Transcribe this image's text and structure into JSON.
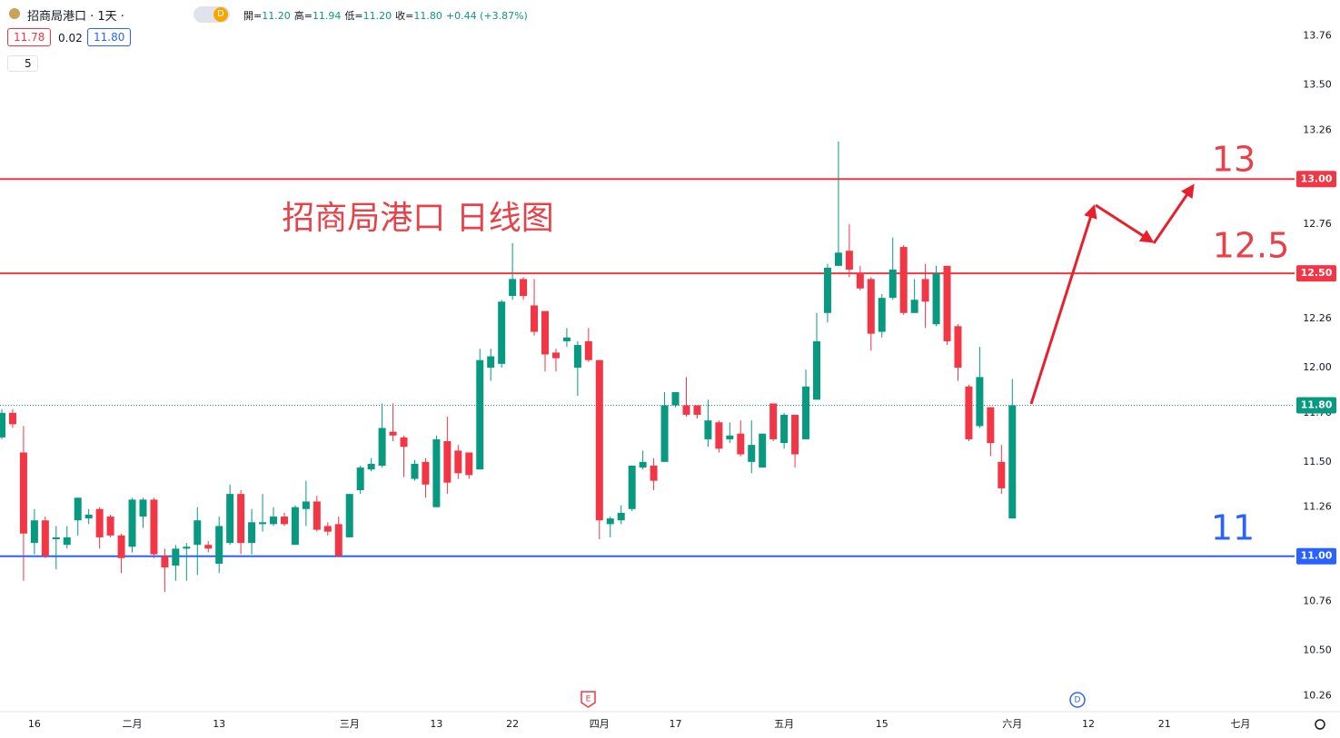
{
  "header": {
    "symbol": "招商局港口 · 1天 ·",
    "badge": "D",
    "ohlc": [
      {
        "label": "開=",
        "value": "11.20"
      },
      {
        "label": "高=",
        "value": "11.94"
      },
      {
        "label": "低=",
        "value": "11.20"
      },
      {
        "label": "收=",
        "value": "11.80"
      }
    ],
    "change": "+0.44 (+3.87%)",
    "sell": "11.78",
    "spread": "0.02",
    "buy": "11.80",
    "indicator": "5"
  },
  "chart_data": {
    "type": "candlestick",
    "title": "招商局港口 日线图",
    "categories": [
      null,
      null,
      null,
      "16",
      null,
      null,
      null,
      null,
      null,
      null,
      null,
      null,
      "二月",
      null,
      null,
      null,
      null,
      null,
      null,
      null,
      "13",
      null,
      null,
      null,
      null,
      null,
      null,
      null,
      null,
      null,
      null,
      null,
      "三月",
      null,
      null,
      null,
      null,
      null,
      null,
      null,
      "13",
      null,
      null,
      null,
      null,
      null,
      null,
      "22",
      null,
      null,
      null,
      null,
      null,
      null,
      null,
      "四月",
      null,
      null,
      null,
      null,
      null,
      null,
      "17",
      null,
      null,
      null,
      null,
      null,
      null,
      null,
      null,
      null,
      "五月",
      null,
      null,
      null,
      null,
      null,
      null,
      null,
      null,
      "15",
      null,
      null,
      null,
      null,
      null,
      null,
      null,
      null,
      null,
      null,
      null,
      "六月",
      null,
      null,
      null,
      null,
      null,
      null,
      "12",
      null,
      null,
      null,
      null,
      null,
      null,
      "21",
      null,
      null,
      null,
      null,
      null,
      null,
      "七月",
      null,
      null,
      null
    ],
    "open": [
      11.63,
      11.76,
      11.55,
      11.07,
      11.19,
      11.09,
      11.06,
      11.19,
      11.2,
      11.25,
      11.21,
      11.11,
      11.05,
      11.21,
      11.3,
      11.0,
      10.95,
      11.04,
      11.06,
      11.06,
      10.96,
      11.07,
      11.33,
      11.07,
      11.17,
      11.17,
      11.21,
      11.06,
      11.25,
      11.29,
      11.16,
      11.17,
      11.1,
      11.35,
      11.46,
      11.48,
      11.66,
      11.63,
      11.41,
      11.5,
      11.26,
      11.61,
      11.56,
      11.55,
      11.46,
      12.0,
      12.02,
      12.38,
      12.47,
      12.33,
      12.3,
      12.08,
      12.14,
      12.0,
      12.14,
      12.04,
      11.17,
      11.19,
      11.25,
      11.47,
      11.48,
      11.5,
      11.8,
      11.8,
      11.8,
      11.62,
      11.71,
      11.62,
      11.65,
      11.5,
      11.47,
      11.81,
      11.6,
      11.75,
      11.62,
      11.83,
      12.29,
      12.54,
      12.62,
      12.5,
      12.47,
      12.19,
      12.37,
      12.64,
      12.29,
      12.47,
      12.23,
      12.54,
      12.22,
      11.9,
      11.69,
      11.79,
      11.5,
      11.2,
      null,
      null,
      null,
      null,
      null,
      null,
      null,
      null,
      null,
      null,
      null,
      null,
      null,
      null,
      null,
      null,
      null,
      null,
      null,
      null,
      null,
      null,
      null,
      null
    ],
    "high": [
      11.78,
      11.78,
      11.69,
      11.25,
      11.21,
      11.16,
      11.16,
      11.31,
      11.25,
      11.26,
      11.22,
      11.12,
      11.31,
      11.31,
      11.31,
      11.04,
      11.06,
      11.07,
      11.26,
      11.08,
      11.21,
      11.38,
      11.35,
      11.25,
      11.33,
      11.26,
      11.23,
      11.27,
      11.4,
      11.32,
      11.18,
      11.21,
      11.33,
      11.48,
      11.52,
      11.81,
      11.81,
      11.64,
      11.51,
      11.52,
      11.64,
      11.74,
      11.59,
      11.55,
      12.1,
      12.1,
      12.36,
      12.66,
      12.48,
      12.47,
      12.3,
      12.1,
      12.21,
      12.14,
      12.21,
      12.04,
      11.21,
      11.27,
      11.48,
      11.56,
      11.52,
      11.87,
      11.87,
      11.95,
      11.8,
      11.83,
      11.72,
      11.71,
      11.72,
      11.72,
      11.65,
      11.81,
      11.76,
      11.75,
      11.99,
      12.29,
      12.55,
      13.2,
      12.76,
      12.54,
      12.48,
      12.39,
      12.69,
      12.65,
      12.47,
      12.55,
      12.54,
      12.54,
      12.23,
      11.91,
      12.11,
      11.79,
      11.59,
      11.94,
      null,
      null,
      null,
      null,
      null,
      null,
      null,
      null,
      null,
      null,
      null,
      null,
      null,
      null,
      null,
      null,
      null,
      null,
      null,
      null,
      null,
      null,
      null,
      null
    ],
    "low": [
      11.62,
      11.68,
      10.87,
      11.01,
      10.99,
      10.93,
      11.04,
      11.11,
      11.17,
      11.04,
      11.1,
      10.91,
      11.02,
      11.15,
      10.99,
      10.81,
      10.87,
      10.87,
      10.9,
      11.02,
      10.91,
      11.06,
      11.01,
      11.01,
      11.13,
      11.16,
      11.16,
      11.06,
      11.16,
      11.13,
      11.11,
      11.0,
      11.1,
      11.33,
      11.45,
      11.47,
      11.61,
      11.42,
      11.4,
      11.31,
      11.26,
      11.33,
      11.41,
      11.41,
      11.46,
      11.93,
      12.0,
      12.36,
      12.36,
      12.17,
      11.98,
      11.98,
      12.11,
      11.85,
      12.03,
      11.09,
      11.1,
      11.17,
      11.24,
      11.46,
      11.35,
      11.5,
      11.79,
      11.74,
      11.73,
      11.58,
      11.55,
      11.6,
      11.53,
      11.44,
      11.47,
      11.61,
      11.57,
      11.47,
      11.62,
      11.83,
      12.24,
      12.54,
      12.48,
      12.41,
      12.09,
      12.16,
      12.36,
      12.28,
      12.29,
      12.21,
      12.22,
      12.12,
      11.93,
      11.61,
      11.68,
      11.53,
      11.33,
      11.2,
      null,
      null,
      null,
      null,
      null,
      null,
      null,
      null,
      null,
      null,
      null,
      null,
      null,
      null,
      null,
      null,
      null,
      null,
      null,
      null,
      null,
      null,
      null,
      null
    ],
    "close": [
      11.76,
      11.7,
      11.12,
      11.19,
      11.0,
      11.1,
      11.1,
      11.31,
      11.22,
      11.1,
      11.11,
      10.99,
      11.3,
      11.3,
      11.01,
      10.94,
      11.04,
      11.05,
      11.19,
      11.04,
      11.16,
      11.33,
      11.07,
      11.18,
      11.18,
      11.21,
      11.17,
      11.26,
      11.29,
      11.14,
      11.13,
      11.0,
      11.33,
      11.47,
      11.49,
      11.68,
      11.64,
      11.58,
      11.49,
      11.38,
      11.62,
      11.39,
      11.44,
      11.43,
      12.04,
      12.06,
      12.35,
      12.47,
      12.38,
      12.19,
      12.07,
      12.05,
      12.16,
      12.12,
      12.04,
      11.19,
      11.2,
      11.23,
      11.48,
      11.5,
      11.4,
      11.8,
      11.87,
      11.75,
      11.75,
      11.72,
      11.57,
      11.64,
      11.54,
      11.59,
      11.65,
      11.62,
      11.75,
      11.54,
      11.9,
      12.14,
      12.53,
      12.61,
      12.52,
      12.42,
      12.18,
      12.37,
      12.52,
      12.29,
      12.36,
      12.35,
      12.5,
      12.14,
      12.0,
      11.62,
      11.95,
      11.6,
      11.36,
      11.8,
      null,
      null,
      null,
      null,
      null,
      null,
      null,
      null,
      null,
      null,
      null,
      null,
      null,
      null,
      null,
      null,
      null,
      null,
      null,
      null,
      null,
      null,
      null,
      null
    ],
    "up_color": "#089981",
    "down_color": "#f23645",
    "ylim": [
      10.18,
      13.95
    ],
    "yticks": [
      10.26,
      {
        "value": 10.5,
        "label": "10.50"
      },
      10.76,
      {
        "value": 11,
        "label": "11.00"
      },
      11.26,
      {
        "value": 11.5,
        "label": "11.50"
      },
      11.76,
      {
        "value": 12,
        "label": "12.00"
      },
      12.26,
      {
        "value": 12.5,
        "label": "12.50"
      },
      12.76,
      {
        "value": 13,
        "label": "13.00"
      },
      13.26,
      {
        "value": 13.5,
        "label": "13.50"
      },
      13.76
    ],
    "hlines": [
      {
        "value": 13,
        "label": "13.00",
        "color": "#f23645"
      },
      {
        "value": 12.5,
        "label": "12.50",
        "color": "#f23645"
      },
      {
        "value": 11,
        "label": "11.00",
        "color": "#2962ff"
      }
    ],
    "last_price": {
      "value": 11.8,
      "label": "11.80",
      "color": "#089981"
    },
    "annotations": [
      "13",
      "12.5",
      "11"
    ],
    "events": [
      "E",
      "D"
    ]
  }
}
